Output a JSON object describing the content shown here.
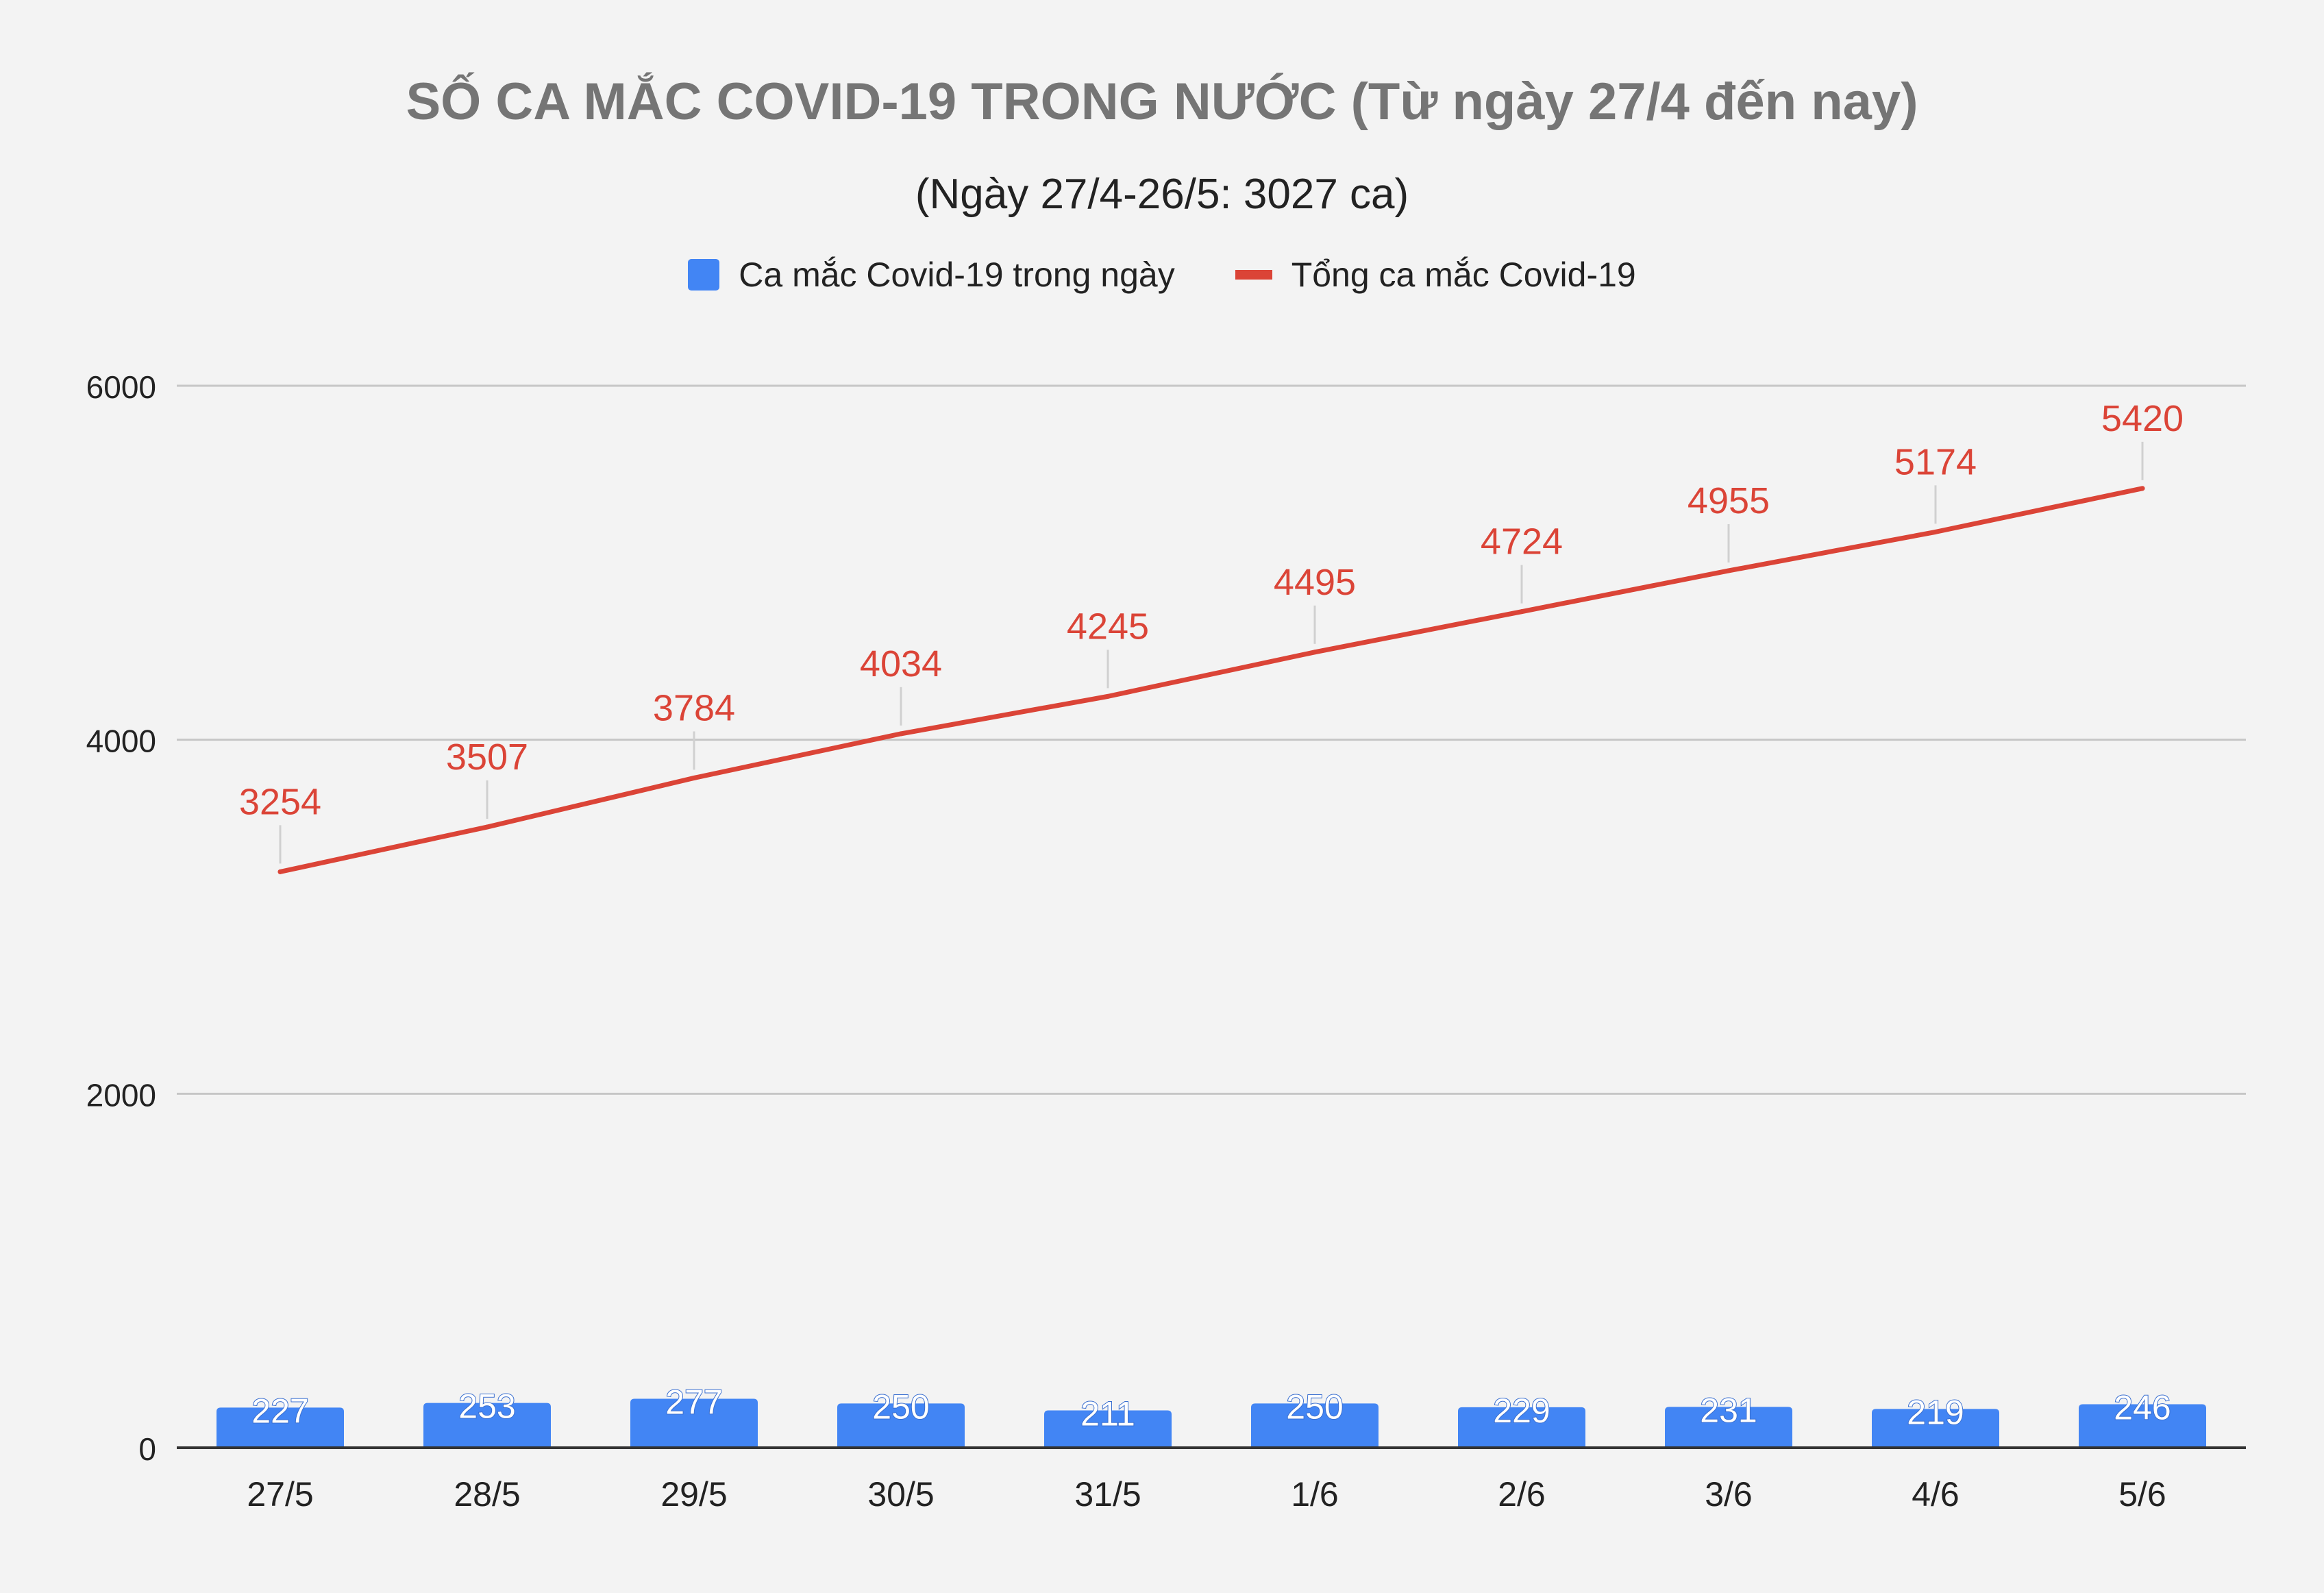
{
  "chart_data": {
    "type": "bar+line",
    "title": "SỐ CA MẮC COVID-19 TRONG NƯỚC (Từ ngày 27/4 đến nay)",
    "subtitle": "(Ngày 27/4-26/5: 3027 ca)",
    "categories": [
      "27/5",
      "28/5",
      "29/5",
      "30/5",
      "31/5",
      "1/6",
      "2/6",
      "3/6",
      "4/6",
      "5/6"
    ],
    "series": [
      {
        "name": "Ca mắc Covid-19 trong ngày",
        "type": "bar",
        "color": "#4285f4",
        "values": [
          227,
          253,
          277,
          250,
          211,
          250,
          229,
          231,
          219,
          246
        ]
      },
      {
        "name": "Tổng ca mắc Covid-19",
        "type": "line",
        "color": "#db4437",
        "values": [
          3254,
          3507,
          3784,
          4034,
          4245,
          4495,
          4724,
          4955,
          5174,
          5420
        ]
      }
    ],
    "yticks": [
      0,
      2000,
      4000,
      6000
    ],
    "ylim": [
      0,
      6000
    ],
    "grid": true,
    "legend_position": "top"
  }
}
